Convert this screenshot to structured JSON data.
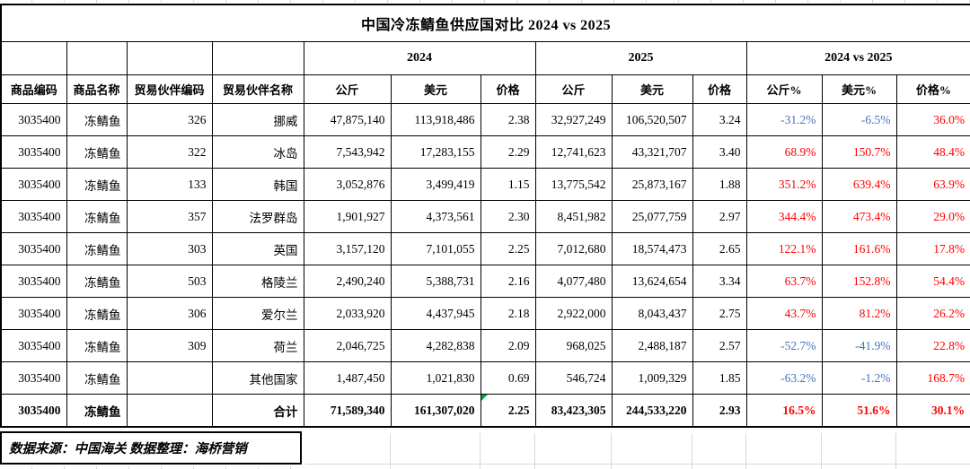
{
  "title": "中国冷冻鲭鱼供应国对比  2024 vs 2025",
  "header": {
    "base": [
      "商品编码",
      "商品名称",
      "贸易伙伴编码",
      "贸易伙伴名称"
    ],
    "groups": {
      "y2024": "2024",
      "y2025": "2025",
      "vs": "2024 vs 2025"
    },
    "sub_2024": [
      "公斤",
      "美元",
      "价格"
    ],
    "sub_2025": [
      "公斤",
      "美元",
      "价格"
    ],
    "sub_vs": [
      "公斤%",
      "美元%",
      "价格%"
    ]
  },
  "rows": [
    {
      "code": "3035400",
      "name": "冻鲭鱼",
      "partner_code": "326",
      "partner_name": "挪威",
      "kg_2024": "47,875,140",
      "usd_2024": "113,918,486",
      "price_2024": "2.38",
      "kg_2025": "32,927,249",
      "usd_2025": "106,520,507",
      "price_2025": "3.24",
      "kg_pct": "-31.2%",
      "usd_pct": "-6.5%",
      "price_pct": "36.0%"
    },
    {
      "code": "3035400",
      "name": "冻鲭鱼",
      "partner_code": "322",
      "partner_name": "冰岛",
      "kg_2024": "7,543,942",
      "usd_2024": "17,283,155",
      "price_2024": "2.29",
      "kg_2025": "12,741,623",
      "usd_2025": "43,321,707",
      "price_2025": "3.40",
      "kg_pct": "68.9%",
      "usd_pct": "150.7%",
      "price_pct": "48.4%"
    },
    {
      "code": "3035400",
      "name": "冻鲭鱼",
      "partner_code": "133",
      "partner_name": "韩国",
      "kg_2024": "3,052,876",
      "usd_2024": "3,499,419",
      "price_2024": "1.15",
      "kg_2025": "13,775,542",
      "usd_2025": "25,873,167",
      "price_2025": "1.88",
      "kg_pct": "351.2%",
      "usd_pct": "639.4%",
      "price_pct": "63.9%"
    },
    {
      "code": "3035400",
      "name": "冻鲭鱼",
      "partner_code": "357",
      "partner_name": "法罗群岛",
      "kg_2024": "1,901,927",
      "usd_2024": "4,373,561",
      "price_2024": "2.30",
      "kg_2025": "8,451,982",
      "usd_2025": "25,077,759",
      "price_2025": "2.97",
      "kg_pct": "344.4%",
      "usd_pct": "473.4%",
      "price_pct": "29.0%"
    },
    {
      "code": "3035400",
      "name": "冻鲭鱼",
      "partner_code": "303",
      "partner_name": "英国",
      "kg_2024": "3,157,120",
      "usd_2024": "7,101,055",
      "price_2024": "2.25",
      "kg_2025": "7,012,680",
      "usd_2025": "18,574,473",
      "price_2025": "2.65",
      "kg_pct": "122.1%",
      "usd_pct": "161.6%",
      "price_pct": "17.8%"
    },
    {
      "code": "3035400",
      "name": "冻鲭鱼",
      "partner_code": "503",
      "partner_name": "格陵兰",
      "kg_2024": "2,490,240",
      "usd_2024": "5,388,731",
      "price_2024": "2.16",
      "kg_2025": "4,077,480",
      "usd_2025": "13,624,654",
      "price_2025": "3.34",
      "kg_pct": "63.7%",
      "usd_pct": "152.8%",
      "price_pct": "54.4%"
    },
    {
      "code": "3035400",
      "name": "冻鲭鱼",
      "partner_code": "306",
      "partner_name": "爱尔兰",
      "kg_2024": "2,033,920",
      "usd_2024": "4,437,945",
      "price_2024": "2.18",
      "kg_2025": "2,922,000",
      "usd_2025": "8,043,437",
      "price_2025": "2.75",
      "kg_pct": "43.7%",
      "usd_pct": "81.2%",
      "price_pct": "26.2%"
    },
    {
      "code": "3035400",
      "name": "冻鲭鱼",
      "partner_code": "309",
      "partner_name": "荷兰",
      "kg_2024": "2,046,725",
      "usd_2024": "4,282,838",
      "price_2024": "2.09",
      "kg_2025": "968,025",
      "usd_2025": "2,488,187",
      "price_2025": "2.57",
      "kg_pct": "-52.7%",
      "usd_pct": "-41.9%",
      "price_pct": "22.8%"
    },
    {
      "code": "3035400",
      "name": "冻鲭鱼",
      "partner_code": "",
      "partner_name": "其他国家",
      "kg_2024": "1,487,450",
      "usd_2024": "1,021,830",
      "price_2024": "0.69",
      "kg_2025": "546,724",
      "usd_2025": "1,009,329",
      "price_2025": "1.85",
      "kg_pct": "-63.2%",
      "usd_pct": "-1.2%",
      "price_pct": "168.7%"
    },
    {
      "code": "3035400",
      "name": "冻鲭鱼",
      "partner_code": "",
      "partner_name": "合计",
      "kg_2024": "71,589,340",
      "usd_2024": "161,307,020",
      "price_2024": "2.25",
      "kg_2025": "83,423,305",
      "usd_2025": "244,533,220",
      "price_2025": "2.93",
      "kg_pct": "16.5%",
      "usd_pct": "51.6%",
      "price_pct": "30.1%",
      "is_total": true,
      "has_green_corner": true
    }
  ],
  "footer": {
    "source_note": "数据来源：中国海关 数据整理：海桥营销"
  },
  "colors": {
    "increase_red": "#FF0000",
    "decrease_blue": "#4472C4",
    "green_corner": "#00A650",
    "table_border": "#000000",
    "faint_grid": "#D9D9D9"
  }
}
